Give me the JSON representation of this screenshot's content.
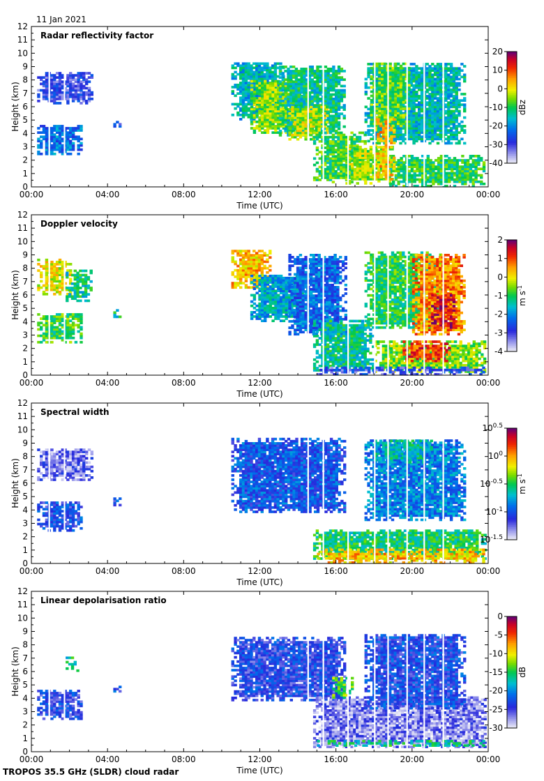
{
  "date": "11 Jan 2021",
  "footer": "TROPOS 35.5 GHz (SLDR) cloud radar",
  "chart_data": [
    {
      "type": "heatmap",
      "title": "Radar reflectivity factor",
      "xlabel": "Time (UTC)",
      "ylabel": "Height (km)",
      "x_ticks": [
        "00:00",
        "04:00",
        "08:00",
        "12:00",
        "16:00",
        "20:00",
        "00:00"
      ],
      "y_ticks": [
        0,
        1,
        2,
        3,
        4,
        5,
        6,
        7,
        8,
        9,
        10,
        11,
        12
      ],
      "ylim": [
        0,
        12
      ],
      "colorbar": {
        "label": "dBz",
        "min": -40,
        "max": 20,
        "ticks": [
          "20",
          "10",
          "0",
          "-10",
          "-20",
          "-30",
          "-40"
        ]
      },
      "regions": [
        {
          "t0": 0.3,
          "t1": 2.6,
          "h0": 2.4,
          "h1": 4.6,
          "v": 0.3
        },
        {
          "t0": 0.3,
          "t1": 3.2,
          "h0": 6.2,
          "h1": 8.6,
          "v": 0.18
        },
        {
          "t0": 4.3,
          "t1": 4.6,
          "h0": 4.3,
          "h1": 4.9,
          "v": 0.22
        },
        {
          "t0": 10.5,
          "t1": 13.2,
          "h0": 5.0,
          "h1": 9.3,
          "v": 0.4
        },
        {
          "t0": 11.5,
          "t1": 14.5,
          "h0": 4.0,
          "h1": 8.0,
          "v": 0.58
        },
        {
          "t0": 13.0,
          "t1": 16.5,
          "h0": 3.8,
          "h1": 9.0,
          "v": 0.45
        },
        {
          "t0": 13.5,
          "t1": 15.5,
          "h0": 3.5,
          "h1": 6.0,
          "v": 0.62
        },
        {
          "t0": 14.8,
          "t1": 17.5,
          "h0": 0.3,
          "h1": 4.0,
          "v": 0.52
        },
        {
          "t0": 16.5,
          "t1": 19.0,
          "h0": 0.2,
          "h1": 3.0,
          "v": 0.6
        },
        {
          "t0": 17.5,
          "t1": 22.8,
          "h0": 3.2,
          "h1": 9.2,
          "v": 0.42
        },
        {
          "t0": 17.8,
          "t1": 19.8,
          "h0": 4.5,
          "h1": 9.2,
          "v": 0.55
        },
        {
          "t0": 18.8,
          "t1": 23.8,
          "h0": 0.0,
          "h1": 2.3,
          "v": 0.5
        },
        {
          "t0": 18.0,
          "t1": 19.0,
          "h0": 0.5,
          "h1": 5.0,
          "v": 0.72
        }
      ]
    },
    {
      "type": "heatmap",
      "title": "Doppler velocity",
      "xlabel": "Time (UTC)",
      "ylabel": "Height (km)",
      "x_ticks": [
        "00:00",
        "04:00",
        "08:00",
        "12:00",
        "16:00",
        "20:00",
        "00:00"
      ],
      "y_ticks": [
        0,
        1,
        2,
        3,
        4,
        5,
        6,
        7,
        8,
        9,
        10,
        11,
        12
      ],
      "ylim": [
        0,
        12
      ],
      "colorbar": {
        "label": "m s-1",
        "min": -4,
        "max": 2,
        "ticks": [
          "2",
          "1",
          "0",
          "-1",
          "-2",
          "-3",
          "-4"
        ]
      },
      "regions": [
        {
          "t0": 0.3,
          "t1": 2.6,
          "h0": 2.4,
          "h1": 4.6,
          "v": 0.52
        },
        {
          "t0": 0.3,
          "t1": 2.0,
          "h0": 6.0,
          "h1": 8.6,
          "v": 0.66
        },
        {
          "t0": 1.8,
          "t1": 3.2,
          "h0": 5.5,
          "h1": 7.8,
          "v": 0.45
        },
        {
          "t0": 4.3,
          "t1": 4.6,
          "h0": 4.3,
          "h1": 4.9,
          "v": 0.45
        },
        {
          "t0": 10.5,
          "t1": 12.5,
          "h0": 6.5,
          "h1": 9.3,
          "v": 0.72
        },
        {
          "t0": 11.5,
          "t1": 14.5,
          "h0": 4.0,
          "h1": 7.5,
          "v": 0.38
        },
        {
          "t0": 13.5,
          "t1": 16.5,
          "h0": 3.0,
          "h1": 9.0,
          "v": 0.28
        },
        {
          "t0": 14.8,
          "t1": 18.0,
          "h0": 0.3,
          "h1": 4.0,
          "v": 0.45
        },
        {
          "t0": 17.5,
          "t1": 21.5,
          "h0": 3.5,
          "h1": 9.2,
          "v": 0.5
        },
        {
          "t0": 20.0,
          "t1": 22.8,
          "h0": 3.0,
          "h1": 9.0,
          "v": 0.78
        },
        {
          "t0": 21.0,
          "t1": 22.2,
          "h0": 3.5,
          "h1": 6.0,
          "v": 0.92
        },
        {
          "t0": 18.0,
          "t1": 23.8,
          "h0": 0.2,
          "h1": 2.5,
          "v": 0.58
        },
        {
          "t0": 19.5,
          "t1": 22.0,
          "h0": 1.0,
          "h1": 2.5,
          "v": 0.85
        },
        {
          "t0": 15.0,
          "t1": 23.8,
          "h0": 0.0,
          "h1": 0.6,
          "v": 0.18
        }
      ]
    },
    {
      "type": "heatmap",
      "title": "Spectral width",
      "xlabel": "Time (UTC)",
      "ylabel": "Height (km)",
      "x_ticks": [
        "00:00",
        "04:00",
        "08:00",
        "12:00",
        "16:00",
        "20:00",
        "00:00"
      ],
      "y_ticks": [
        0,
        1,
        2,
        3,
        4,
        5,
        6,
        7,
        8,
        9,
        10,
        11,
        12
      ],
      "ylim": [
        0,
        12
      ],
      "colorbar": {
        "label": "m s-1",
        "min": -1.5,
        "max": 0.5,
        "log": true,
        "ticks": [
          {
            "base": "10",
            "exp": "0.5"
          },
          {
            "base": "10",
            "exp": "0"
          },
          {
            "base": "10",
            "exp": "-0.5"
          },
          {
            "base": "10",
            "exp": "-1"
          },
          {
            "base": "10",
            "exp": "-1.5"
          }
        ]
      },
      "regions": [
        {
          "t0": 0.3,
          "t1": 2.6,
          "h0": 2.4,
          "h1": 4.6,
          "v": 0.22
        },
        {
          "t0": 0.3,
          "t1": 3.2,
          "h0": 6.2,
          "h1": 8.6,
          "v": 0.12
        },
        {
          "t0": 4.3,
          "t1": 4.6,
          "h0": 4.3,
          "h1": 4.9,
          "v": 0.22
        },
        {
          "t0": 10.5,
          "t1": 16.5,
          "h0": 3.8,
          "h1": 9.3,
          "v": 0.25
        },
        {
          "t0": 14.8,
          "t1": 23.8,
          "h0": 0.3,
          "h1": 2.5,
          "v": 0.48
        },
        {
          "t0": 15.0,
          "t1": 23.8,
          "h0": 0.0,
          "h1": 1.0,
          "v": 0.72
        },
        {
          "t0": 17.5,
          "t1": 22.8,
          "h0": 3.2,
          "h1": 9.2,
          "v": 0.32
        },
        {
          "t0": 18.0,
          "t1": 21.0,
          "h0": 7.5,
          "h1": 9.2,
          "v": 0.42
        }
      ]
    },
    {
      "type": "heatmap",
      "title": "Linear depolarisation ratio",
      "xlabel": "Time (UTC)",
      "ylabel": "Height (km)",
      "x_ticks": [
        "00:00",
        "04:00",
        "08:00",
        "12:00",
        "16:00",
        "20:00",
        "00:00"
      ],
      "y_ticks": [
        0,
        1,
        2,
        3,
        4,
        5,
        6,
        7,
        8,
        9,
        10,
        11,
        12
      ],
      "ylim": [
        0,
        12
      ],
      "colorbar": {
        "label": "dB",
        "min": -30,
        "max": 0,
        "ticks": [
          "0",
          "-5",
          "-10",
          "-15",
          "-20",
          "-25",
          "-30"
        ]
      },
      "regions": [
        {
          "t0": 0.3,
          "t1": 2.6,
          "h0": 2.4,
          "h1": 4.6,
          "v": 0.2
        },
        {
          "t0": 1.8,
          "t1": 2.5,
          "h0": 6.0,
          "h1": 7.0,
          "v": 0.45
        },
        {
          "t0": 4.3,
          "t1": 4.6,
          "h0": 4.3,
          "h1": 4.9,
          "v": 0.22
        },
        {
          "t0": 10.5,
          "t1": 16.5,
          "h0": 3.8,
          "h1": 8.5,
          "v": 0.2
        },
        {
          "t0": 14.8,
          "t1": 23.8,
          "h0": 0.3,
          "h1": 4.0,
          "v": 0.1
        },
        {
          "t0": 17.5,
          "t1": 22.8,
          "h0": 3.2,
          "h1": 8.8,
          "v": 0.22
        },
        {
          "t0": 15.8,
          "t1": 16.8,
          "h0": 4.0,
          "h1": 5.5,
          "v": 0.55
        },
        {
          "t0": 15.0,
          "t1": 23.8,
          "h0": 0.4,
          "h1": 0.8,
          "v": 0.45
        }
      ]
    }
  ]
}
